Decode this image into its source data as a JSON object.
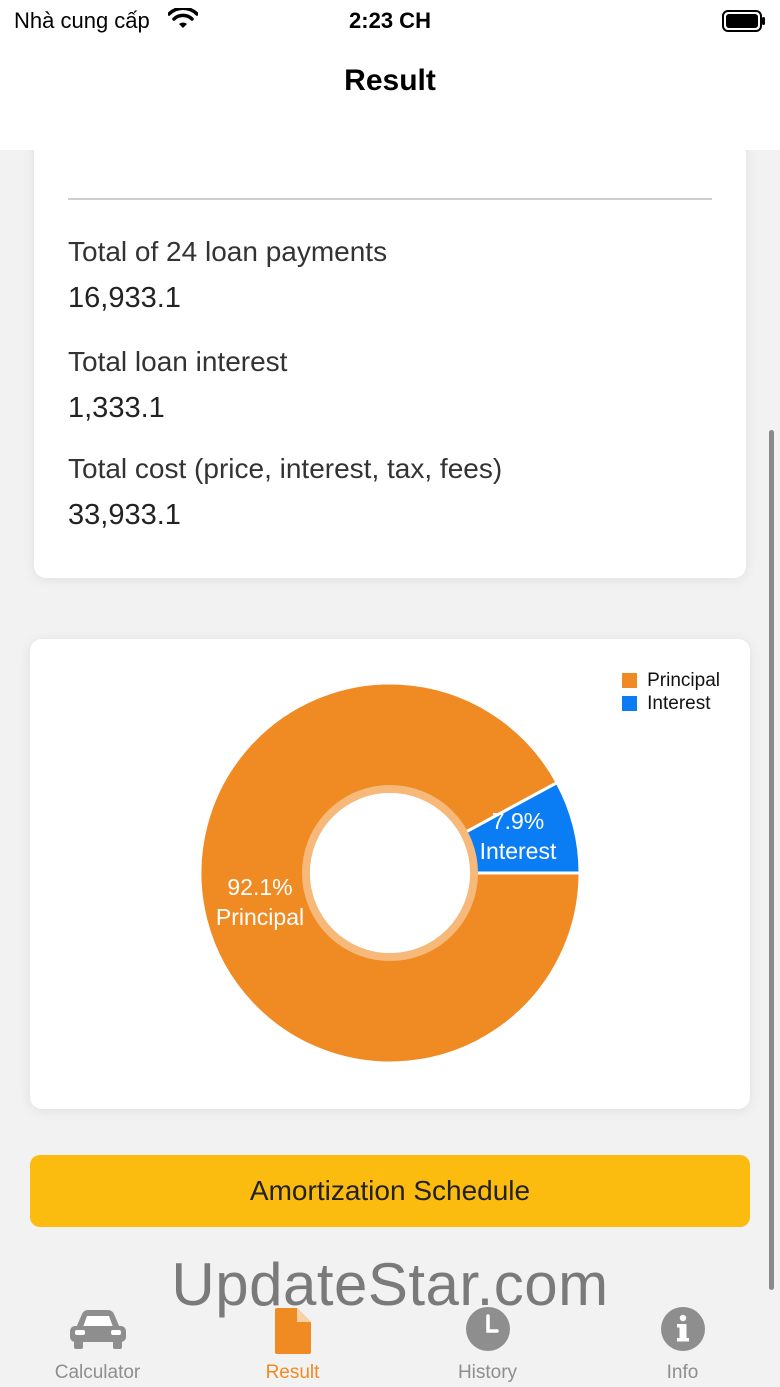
{
  "status_bar": {
    "carrier": "Nhà cung cấp",
    "time": "2:23 CH"
  },
  "nav": {
    "title": "Result"
  },
  "summary": {
    "cutoff_text": "·,",
    "rows": [
      {
        "label": "Total of 24 loan payments",
        "value": "16,933.1"
      },
      {
        "label": "Total loan interest",
        "value": "1,333.1"
      },
      {
        "label": "Total cost (price, interest, tax, fees)",
        "value": "33,933.1"
      }
    ]
  },
  "chart_data": {
    "type": "pie",
    "title": "",
    "categories": [
      "Principal",
      "Interest"
    ],
    "values": [
      92.1,
      7.9
    ],
    "labels": [
      "92.1%",
      "7.9%"
    ],
    "colors": [
      "#f08a23",
      "#0a7df5"
    ],
    "legend": [
      "Principal",
      "Interest"
    ],
    "legend_position": "top-right",
    "donut": true
  },
  "actions": {
    "amortization_label": "Amortization Schedule"
  },
  "watermark": "UpdateStar.com",
  "tabs": [
    {
      "label": "Calculator",
      "icon": "car-icon",
      "active": false
    },
    {
      "label": "Result",
      "icon": "document-icon",
      "active": true
    },
    {
      "label": "History",
      "icon": "clock-icon",
      "active": false
    },
    {
      "label": "Info",
      "icon": "info-icon",
      "active": false
    }
  ]
}
